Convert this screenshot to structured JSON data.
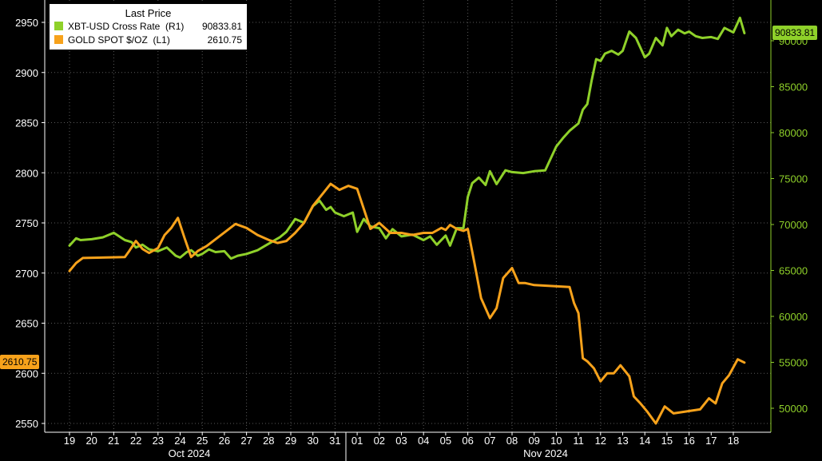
{
  "legend": {
    "title": "Last Price",
    "items": [
      {
        "name": "XBT-USD Cross Rate  (R1)",
        "value": "90833.81",
        "color": "#8fd12a"
      },
      {
        "name": "GOLD SPOT $/OZ  (L1)",
        "value": "2610.75",
        "color": "#f7a21b"
      }
    ]
  },
  "last_value_tags": {
    "right": "90833.81",
    "left": "2610.75"
  },
  "chart_data": {
    "type": "line",
    "title": "",
    "x_tick_labels": [
      "19",
      "20",
      "21",
      "22",
      "23",
      "24",
      "25",
      "26",
      "27",
      "28",
      "29",
      "30",
      "31",
      "01",
      "02",
      "03",
      "04",
      "05",
      "06",
      "07",
      "08",
      "09",
      "10",
      "11",
      "12",
      "13",
      "14",
      "15",
      "16",
      "17",
      "18"
    ],
    "month_labels": [
      "Oct 2024",
      "Nov 2024"
    ],
    "left_axis": {
      "ticks": [
        2550,
        2600,
        2650,
        2700,
        2750,
        2800,
        2850,
        2900,
        2950
      ],
      "range": [
        2540,
        2970
      ]
    },
    "right_axis": {
      "ticks": [
        50000,
        55000,
        60000,
        65000,
        70000,
        75000,
        80000,
        85000,
        90000
      ],
      "range": [
        48300,
        95600
      ]
    },
    "grid": true,
    "legend_position": "top-left",
    "series": [
      {
        "name": "XBT-USD Cross Rate  (R1)",
        "axis": "right",
        "color": "#8fd12a",
        "x": [
          18.0,
          18.3,
          18.5,
          19.0,
          19.5,
          20.0,
          20.5,
          20.8,
          21.0,
          21.3,
          21.6,
          22.0,
          22.4,
          22.8,
          23.0,
          23.3,
          23.5,
          23.8,
          24.0,
          24.3,
          24.6,
          25.0,
          25.3,
          25.6,
          26.0,
          26.5,
          27.0,
          27.5,
          27.8,
          28.2,
          28.6,
          29.0,
          29.3,
          29.6,
          29.8,
          30.0,
          30.4,
          30.8,
          31.0,
          31.3,
          31.6,
          32.0,
          32.3,
          32.6,
          33.0,
          33.5,
          34.0,
          34.3,
          34.6,
          35.0,
          35.2,
          35.5,
          35.8,
          36.0,
          36.2,
          36.5,
          36.8,
          37.0,
          37.3,
          37.7,
          38.0,
          38.5,
          39.0,
          39.5,
          40.0,
          40.3,
          40.6,
          41.0,
          41.2,
          41.4,
          41.6,
          41.8,
          42.0,
          42.2,
          42.5,
          42.8,
          43.0,
          43.3,
          43.6,
          44.0,
          44.2,
          44.5,
          44.8,
          45.0,
          45.2,
          45.5,
          45.8,
          46.0,
          46.3,
          46.6,
          47.0,
          47.3,
          47.6,
          48.0,
          48.3,
          48.5
        ],
        "values": [
          67700,
          68500,
          68300,
          68400,
          68600,
          69100,
          68300,
          68100,
          67500,
          67800,
          67300,
          67100,
          67500,
          66600,
          66400,
          67000,
          67200,
          66600,
          66800,
          67300,
          67000,
          67100,
          66300,
          66600,
          66800,
          67200,
          67900,
          68600,
          69200,
          70600,
          70200,
          72000,
          72600,
          71600,
          71900,
          71300,
          70900,
          71300,
          69200,
          70600,
          69800,
          69600,
          68500,
          69500,
          68700,
          68900,
          68300,
          68700,
          67800,
          68800,
          67700,
          69600,
          69600,
          73000,
          74500,
          75100,
          74300,
          75800,
          74400,
          75900,
          75700,
          75600,
          75800,
          75900,
          78500,
          79400,
          80200,
          81000,
          82500,
          83100,
          85700,
          88000,
          87800,
          88600,
          88900,
          88500,
          88900,
          91000,
          90300,
          88200,
          88600,
          90300,
          89500,
          91400,
          90500,
          91200,
          90800,
          91000,
          90500,
          90300,
          90400,
          90200,
          91400,
          90900,
          92500,
          90830
        ]
      },
      {
        "name": "GOLD SPOT $/OZ  (L1)",
        "axis": "left",
        "color": "#f7a21b",
        "x": [
          18.0,
          18.3,
          18.6,
          20.5,
          20.7,
          21.0,
          21.3,
          21.6,
          22.0,
          22.3,
          22.6,
          22.9,
          23.2,
          23.5,
          23.8,
          24.2,
          25.5,
          26.0,
          26.5,
          27.0,
          27.4,
          27.8,
          28.2,
          28.6,
          29.0,
          29.4,
          29.8,
          30.2,
          30.6,
          31.0,
          31.3,
          31.6,
          32.0,
          32.5,
          33.0,
          33.5,
          34.0,
          34.4,
          34.8,
          35.0,
          35.2,
          35.5,
          35.8,
          36.0,
          36.3,
          36.6,
          37.0,
          37.3,
          37.6,
          38.0,
          38.3,
          38.6,
          39.0,
          40.6,
          40.8,
          41.0,
          41.2,
          41.4,
          41.7,
          42.0,
          42.3,
          42.6,
          42.9,
          43.3,
          43.5,
          43.8,
          44.1,
          44.5,
          44.9,
          45.3,
          46.5,
          46.9,
          47.2,
          47.5,
          47.8,
          48.2,
          48.5
        ],
        "values": [
          2702,
          2710,
          2715,
          2716,
          2722,
          2732,
          2724,
          2720,
          2725,
          2738,
          2745,
          2755,
          2735,
          2716,
          2722,
          2727,
          2749,
          2745,
          2738,
          2733,
          2730,
          2732,
          2740,
          2750,
          2767,
          2778,
          2789,
          2783,
          2787,
          2784,
          2764,
          2744,
          2750,
          2740,
          2740,
          2738,
          2740,
          2740,
          2745,
          2743,
          2748,
          2744,
          2742,
          2744,
          2710,
          2675,
          2655,
          2665,
          2695,
          2705,
          2690,
          2690,
          2688,
          2686,
          2670,
          2660,
          2615,
          2612,
          2605,
          2592,
          2600,
          2600,
          2608,
          2597,
          2577,
          2570,
          2562,
          2550,
          2567,
          2560,
          2564,
          2575,
          2570,
          2590,
          2598,
          2614,
          2610.75
        ]
      }
    ]
  }
}
